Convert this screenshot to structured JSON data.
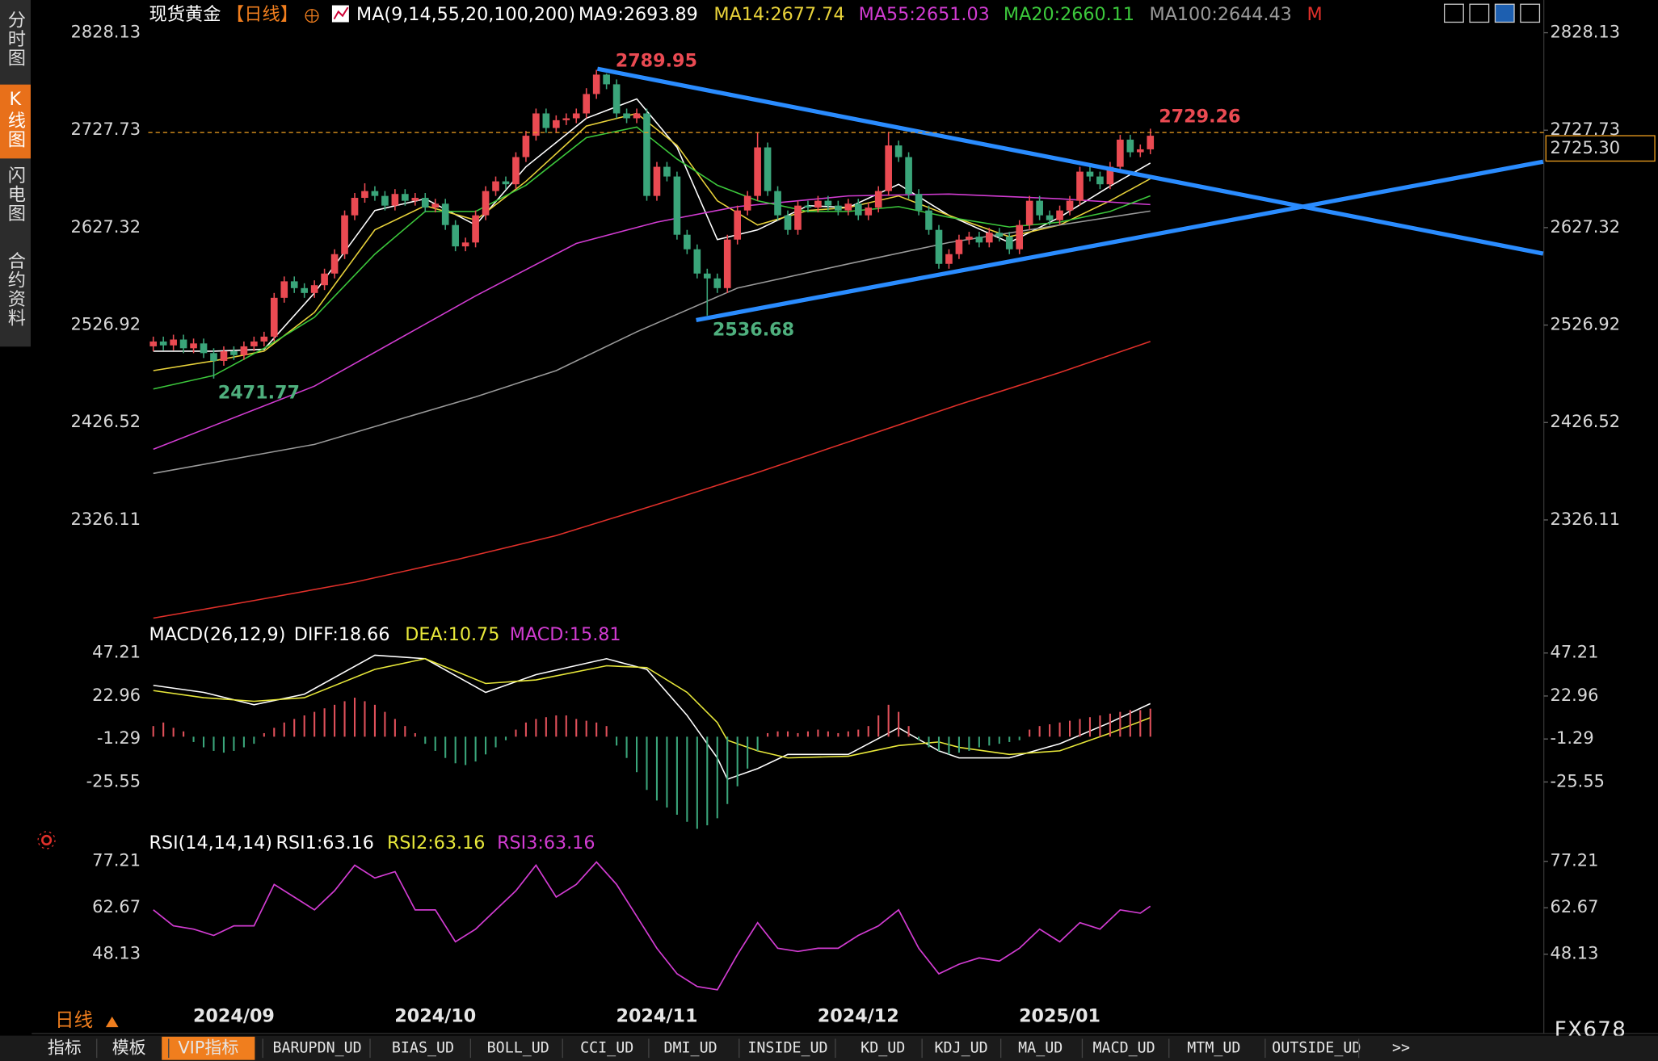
{
  "ui": {
    "sidebar": [
      "分时图",
      "K线图",
      "闪电图",
      "合约资料"
    ],
    "period": "日线",
    "brand": "FX678",
    "bottom_tabs": [
      "指标",
      "模板",
      "VIP指标",
      "BARUPDN_UD",
      "BIAS_UD",
      "BOLL_UD",
      "CCI_UD",
      "DMI_UD",
      "INSIDE_UD",
      "KD_UD",
      "KDJ_UD",
      "MA_UD",
      "MACD_UD",
      "MTM_UD",
      "OUTSIDE_UD",
      ">>"
    ]
  },
  "chart_data": [
    {
      "type": "candlestick",
      "title": "现货黄金",
      "period": "【日线】",
      "ma_label": "MA(9,14,55,20,100,200)",
      "flag": "M",
      "up_color": "#ea4a52",
      "down_color": "#3aa57a",
      "low_label_color": "#4fb07e",
      "categories": [
        null,
        null,
        null,
        null,
        null,
        null,
        null,
        null,
        "2024/09",
        null,
        null,
        null,
        null,
        null,
        null,
        null,
        null,
        null,
        null,
        null,
        null,
        null,
        null,
        null,
        null,
        null,
        null,
        null,
        "2024/10",
        null,
        null,
        null,
        null,
        null,
        null,
        null,
        null,
        null,
        null,
        null,
        null,
        null,
        null,
        null,
        null,
        null,
        null,
        null,
        null,
        null,
        "2024/11",
        null,
        null,
        null,
        null,
        null,
        null,
        null,
        null,
        null,
        null,
        null,
        null,
        null,
        null,
        null,
        null,
        null,
        null,
        null,
        "2024/12",
        null,
        null,
        null,
        null,
        null,
        null,
        null,
        null,
        null,
        null,
        null,
        null,
        null,
        null,
        null,
        null,
        null,
        null,
        null,
        "2025/01",
        null,
        null,
        null,
        null,
        null,
        null,
        null,
        null,
        null
      ],
      "open": [
        2505,
        2510,
        2506,
        2512,
        2503,
        2508,
        2498,
        2490,
        2500,
        2496,
        2505,
        2510,
        2515,
        2555,
        2572,
        2565,
        2560,
        2568,
        2580,
        2600,
        2640,
        2658,
        2665,
        2660,
        2650,
        2662,
        2655,
        2658,
        2648,
        2652,
        2630,
        2608,
        2612,
        2640,
        2665,
        2675,
        2672,
        2700,
        2722,
        2745,
        2730,
        2738,
        2740,
        2745,
        2765,
        2785,
        2775,
        2745,
        2740,
        2745,
        2660,
        2690,
        2680,
        2620,
        2605,
        2580,
        2575,
        2565,
        2615,
        2645,
        2660,
        2710,
        2665,
        2640,
        2625,
        2650,
        2648,
        2655,
        2650,
        2645,
        2652,
        2640,
        2648,
        2665,
        2712,
        2700,
        2662,
        2645,
        2625,
        2590,
        2600,
        2615,
        2618,
        2612,
        2622,
        2618,
        2605,
        2630,
        2655,
        2640,
        2635,
        2645,
        2655,
        2685,
        2680,
        2672,
        2690,
        2718,
        2705,
        2708
      ],
      "high": [
        2515,
        2515,
        2517,
        2517,
        2513,
        2513,
        2503,
        2505,
        2505,
        2510,
        2515,
        2520,
        2560,
        2577,
        2577,
        2570,
        2573,
        2585,
        2605,
        2645,
        2663,
        2673,
        2670,
        2665,
        2667,
        2667,
        2663,
        2663,
        2657,
        2657,
        2635,
        2617,
        2645,
        2670,
        2680,
        2680,
        2705,
        2727,
        2750,
        2750,
        2743,
        2745,
        2750,
        2771,
        2789.95,
        2786,
        2780,
        2750,
        2750,
        2750,
        2695,
        2695,
        2685,
        2625,
        2610,
        2585,
        2580,
        2620,
        2650,
        2665,
        2725,
        2715,
        2670,
        2645,
        2655,
        2655,
        2660,
        2660,
        2655,
        2657,
        2657,
        2653,
        2670,
        2726,
        2717,
        2705,
        2667,
        2650,
        2630,
        2605,
        2620,
        2623,
        2623,
        2627,
        2627,
        2623,
        2635,
        2660,
        2660,
        2645,
        2650,
        2660,
        2690,
        2690,
        2685,
        2695,
        2723,
        2723,
        2713,
        2729.26
      ],
      "low": [
        2500,
        2501,
        2501,
        2498,
        2498,
        2493,
        2471.77,
        2485,
        2491,
        2491,
        2500,
        2505,
        2510,
        2550,
        2560,
        2555,
        2555,
        2563,
        2575,
        2595,
        2635,
        2653,
        2655,
        2645,
        2645,
        2650,
        2650,
        2643,
        2643,
        2625,
        2603,
        2603,
        2607,
        2635,
        2660,
        2667,
        2667,
        2695,
        2717,
        2725,
        2725,
        2733,
        2735,
        2740,
        2760,
        2770,
        2740,
        2735,
        2735,
        2655,
        2655,
        2675,
        2615,
        2600,
        2575,
        2536.68,
        2560,
        2560,
        2610,
        2640,
        2655,
        2660,
        2635,
        2620,
        2620,
        2643,
        2643,
        2645,
        2640,
        2640,
        2635,
        2635,
        2643,
        2660,
        2695,
        2657,
        2640,
        2620,
        2585,
        2585,
        2595,
        2610,
        2607,
        2607,
        2613,
        2600,
        2600,
        2625,
        2635,
        2630,
        2630,
        2640,
        2650,
        2675,
        2667,
        2667,
        2685,
        2700,
        2700,
        2703
      ],
      "close": [
        2510,
        2506,
        2512,
        2503,
        2508,
        2498,
        2490,
        2500,
        2496,
        2505,
        2510,
        2515,
        2555,
        2572,
        2565,
        2560,
        2568,
        2580,
        2600,
        2640,
        2658,
        2665,
        2660,
        2650,
        2662,
        2655,
        2658,
        2648,
        2652,
        2630,
        2608,
        2612,
        2640,
        2665,
        2675,
        2672,
        2700,
        2722,
        2745,
        2730,
        2738,
        2740,
        2745,
        2765,
        2785,
        2775,
        2745,
        2740,
        2745,
        2660,
        2690,
        2680,
        2620,
        2605,
        2580,
        2575,
        2565,
        2615,
        2645,
        2660,
        2710,
        2665,
        2640,
        2625,
        2650,
        2648,
        2655,
        2650,
        2645,
        2652,
        2640,
        2648,
        2665,
        2712,
        2700,
        2662,
        2645,
        2625,
        2590,
        2600,
        2615,
        2618,
        2612,
        2622,
        2618,
        2605,
        2630,
        2655,
        2640,
        2635,
        2645,
        2655,
        2685,
        2680,
        2672,
        2690,
        2718,
        2705,
        2708,
        2722
      ],
      "series": [
        {
          "name": "MA9",
          "label": "MA9:2693.89",
          "color": "#ffffff",
          "x": [
            0,
            6,
            11,
            16,
            22,
            27,
            32,
            37,
            43,
            48,
            52,
            56,
            60,
            65,
            69,
            74,
            79,
            85,
            90,
            95,
            99
          ],
          "values": [
            2500,
            2500,
            2502,
            2560,
            2645,
            2657,
            2630,
            2690,
            2740,
            2760,
            2710,
            2615,
            2625,
            2650,
            2648,
            2672,
            2640,
            2612,
            2638,
            2670,
            2693.89
          ]
        },
        {
          "name": "MA14",
          "label": "MA14:2677.74",
          "color": "#e8d23a",
          "x": [
            0,
            6,
            11,
            16,
            22,
            27,
            32,
            37,
            43,
            48,
            52,
            56,
            60,
            65,
            69,
            74,
            79,
            85,
            90,
            95,
            99
          ],
          "values": [
            2480,
            2490,
            2500,
            2540,
            2625,
            2650,
            2635,
            2675,
            2732,
            2745,
            2712,
            2655,
            2630,
            2645,
            2648,
            2660,
            2640,
            2618,
            2630,
            2655,
            2677.74
          ]
        },
        {
          "name": "MA55",
          "label": "MA55:2651.03",
          "color": "#d23cd2",
          "x": [
            0,
            16,
            32,
            42,
            50,
            58,
            69,
            79,
            90,
            99
          ],
          "values": [
            2399,
            2464,
            2557,
            2611,
            2633,
            2649,
            2660,
            2662,
            2657,
            2651.03
          ]
        },
        {
          "name": "MA20",
          "label": "MA20:2660.11",
          "color": "#3cc83c",
          "x": [
            0,
            6,
            11,
            16,
            22,
            27,
            32,
            37,
            43,
            48,
            52,
            56,
            60,
            65,
            69,
            74,
            79,
            85,
            90,
            95,
            99
          ],
          "values": [
            2461,
            2475,
            2503,
            2535,
            2600,
            2644,
            2644,
            2671,
            2720,
            2731,
            2698,
            2671,
            2655,
            2644,
            2644,
            2649,
            2638,
            2628,
            2633,
            2644,
            2660.11
          ]
        },
        {
          "name": "MA100",
          "label": "MA100:2644.43",
          "color": "#9a9a9a",
          "x": [
            0,
            16,
            32,
            40,
            48,
            58,
            69,
            79,
            90,
            99
          ],
          "values": [
            2374,
            2404,
            2453,
            2480,
            2520,
            2565,
            2590,
            2612,
            2630,
            2644.43
          ]
        },
        {
          "color": "#e0302a",
          "x": [
            0,
            10,
            20,
            30,
            40,
            50,
            60,
            70,
            80,
            90,
            99
          ],
          "values": [
            2225,
            2243,
            2262,
            2285,
            2310,
            2342,
            2375,
            2410,
            2445,
            2478,
            2510
          ]
        }
      ],
      "trendlines": [
        {
          "color": "#2a8cff",
          "x": [
            44.1,
            138
          ],
          "values": [
            2791,
            2600.5
          ]
        },
        {
          "color": "#2a8cff",
          "x": [
            53.9,
            138
          ],
          "values": [
            2532,
            2695.3
          ]
        }
      ],
      "current_price": {
        "value": 2725.3,
        "label": "2725.30"
      },
      "current_color": "#f0a020",
      "xlim": [
        -0.5,
        138.6
      ],
      "ylim": [
        2219.4,
        2840.1
      ],
      "yticks": [
        2828.13,
        2727.73,
        2627.32,
        2526.92,
        2426.52,
        2326.11
      ]
    },
    {
      "type": "combo",
      "title": "MACD(26,12,9)",
      "ylim": [
        -52.4,
        57.9
      ],
      "yticks": [
        47.21,
        22.96,
        -1.29,
        -25.55
      ],
      "series": [
        {
          "name": "DIFF",
          "label": "DIFF:18.66",
          "color": "#ffffff",
          "x": [
            0,
            5,
            10,
            15,
            22,
            27,
            33,
            38,
            45,
            49,
            53,
            56,
            57,
            60,
            63,
            69,
            74,
            78,
            80,
            85,
            90,
            95,
            99
          ],
          "values": [
            29,
            25,
            18,
            24,
            46,
            44,
            25,
            35,
            44,
            38,
            12,
            -12,
            -24,
            -18,
            -10,
            -10,
            5,
            -8,
            -12,
            -12,
            -4,
            8,
            18.66
          ]
        },
        {
          "name": "DEA",
          "label": "DEA:10.75",
          "color": "#e8e83a",
          "x": [
            0,
            5,
            10,
            15,
            22,
            27,
            33,
            38,
            45,
            49,
            53,
            56,
            57,
            60,
            63,
            69,
            74,
            78,
            80,
            85,
            90,
            95,
            99
          ],
          "values": [
            26,
            22,
            20,
            22,
            38,
            44,
            30,
            32,
            40,
            39,
            25,
            8,
            -2,
            -8,
            -12,
            -11,
            -5,
            -3,
            -6,
            -10,
            -8,
            2,
            10.75
          ]
        },
        {
          "name": "MACD",
          "label": "MACD:15.81",
          "color": "#d23cd2",
          "type": "bar",
          "up_color": "#e0505a",
          "down_color": "#3aa57a",
          "values": [
            6,
            8,
            5,
            3,
            -3,
            -6,
            -8,
            -9,
            -8,
            -6,
            -4,
            2,
            5,
            8,
            10,
            12,
            14,
            16,
            18,
            20,
            22,
            20,
            18,
            14,
            10,
            6,
            2,
            -4,
            -8,
            -12,
            -15,
            -16,
            -14,
            -10,
            -6,
            -2,
            4,
            8,
            10,
            11,
            12,
            12,
            10,
            9,
            8,
            6,
            -5,
            -12,
            -20,
            -30,
            -36,
            -40,
            -44,
            -48,
            -52,
            -50,
            -46,
            -38,
            -28,
            -18,
            -8,
            2,
            3,
            3,
            2,
            3,
            4,
            3,
            2,
            3,
            4,
            6,
            12,
            18,
            14,
            6,
            -2,
            -6,
            -8,
            -10,
            -9,
            -8,
            -6,
            -5,
            -4,
            -3,
            -2,
            4,
            6,
            7,
            8,
            9,
            10,
            11,
            12,
            13,
            14,
            15,
            15,
            15.81
          ]
        }
      ]
    },
    {
      "type": "line",
      "title": "RSI(14,14,14)",
      "ylim": [
        30.9,
        82.2
      ],
      "yticks": [
        77.21,
        62.67,
        48.13
      ],
      "legend": [
        {
          "label": "RSI1:63.16",
          "color": "#ffffff"
        },
        {
          "label": "RSI2:63.16",
          "color": "#e8e83a"
        },
        {
          "label": "RSI3:63.16",
          "color": "#d23cd2"
        }
      ],
      "color": "#d23cd2",
      "x": [
        0,
        2,
        4,
        6,
        8,
        10,
        12,
        14,
        16,
        18,
        20,
        22,
        24,
        26,
        28,
        30,
        32,
        34,
        36,
        38,
        40,
        42,
        44,
        46,
        48,
        50,
        52,
        54,
        56,
        58,
        60,
        62,
        64,
        66,
        68,
        70,
        72,
        74,
        76,
        78,
        80,
        82,
        84,
        86,
        88,
        90,
        92,
        94,
        96,
        98,
        99
      ],
      "values": [
        62,
        57,
        56,
        54,
        57,
        57,
        70,
        66,
        62,
        68,
        76,
        72,
        74,
        62,
        62,
        52,
        56,
        62,
        68,
        76,
        66,
        70,
        77,
        70,
        60,
        50,
        42,
        38,
        37,
        48,
        58,
        50,
        49,
        50,
        50,
        54,
        57,
        62,
        50,
        42,
        45,
        47,
        46,
        50,
        56,
        52,
        58,
        56,
        62,
        61,
        63.16
      ]
    }
  ]
}
